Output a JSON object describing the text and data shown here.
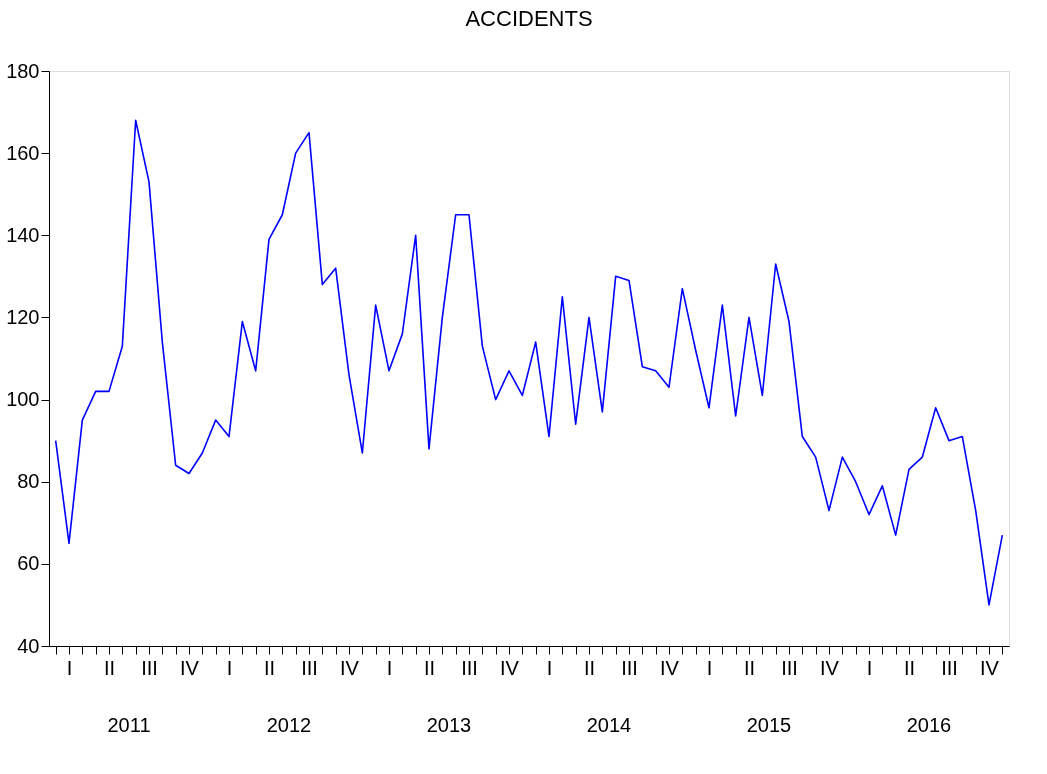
{
  "chart_data": {
    "type": "line",
    "title": "ACCIDENTS",
    "categories": [
      null,
      "I",
      null,
      null,
      "II",
      null,
      null,
      "III",
      null,
      null,
      "IV",
      null,
      null,
      "I",
      null,
      null,
      "II",
      null,
      null,
      "III",
      null,
      null,
      "IV",
      null,
      null,
      "I",
      null,
      null,
      "II",
      null,
      null,
      "III",
      null,
      null,
      "IV",
      null,
      null,
      "I",
      null,
      null,
      "II",
      null,
      null,
      "III",
      null,
      null,
      "IV",
      null,
      null,
      "I",
      null,
      null,
      "II",
      null,
      null,
      "III",
      null,
      null,
      "IV",
      null,
      null,
      "I",
      null,
      null,
      "II",
      null,
      null,
      "III",
      null,
      null,
      "IV",
      null
    ],
    "series": [
      {
        "color": "#0000ff",
        "values": [
          90,
          65,
          95,
          102,
          102,
          113,
          168,
          153,
          114,
          84,
          82,
          87,
          95,
          91,
          119,
          107,
          139,
          145,
          160,
          165,
          128,
          132,
          106,
          87,
          123,
          107,
          116,
          140,
          88,
          120,
          145,
          145,
          113,
          100,
          107,
          101,
          114,
          91,
          125,
          94,
          120,
          97,
          130,
          129,
          108,
          107,
          103,
          127,
          112,
          98,
          123,
          96,
          120,
          101,
          133,
          119,
          91,
          86,
          73,
          86,
          80,
          72,
          79,
          67,
          83,
          86,
          98,
          90,
          91,
          73,
          50,
          67
        ]
      }
    ],
    "ylim": [
      40,
      180
    ],
    "yticks": [
      40,
      60,
      80,
      100,
      120,
      140,
      160,
      180
    ],
    "grid": false,
    "marker": "none",
    "line_style": "solid",
    "annotations": [
      "2011",
      "2012",
      "2013",
      "2014",
      "2015",
      "2016"
    ]
  }
}
